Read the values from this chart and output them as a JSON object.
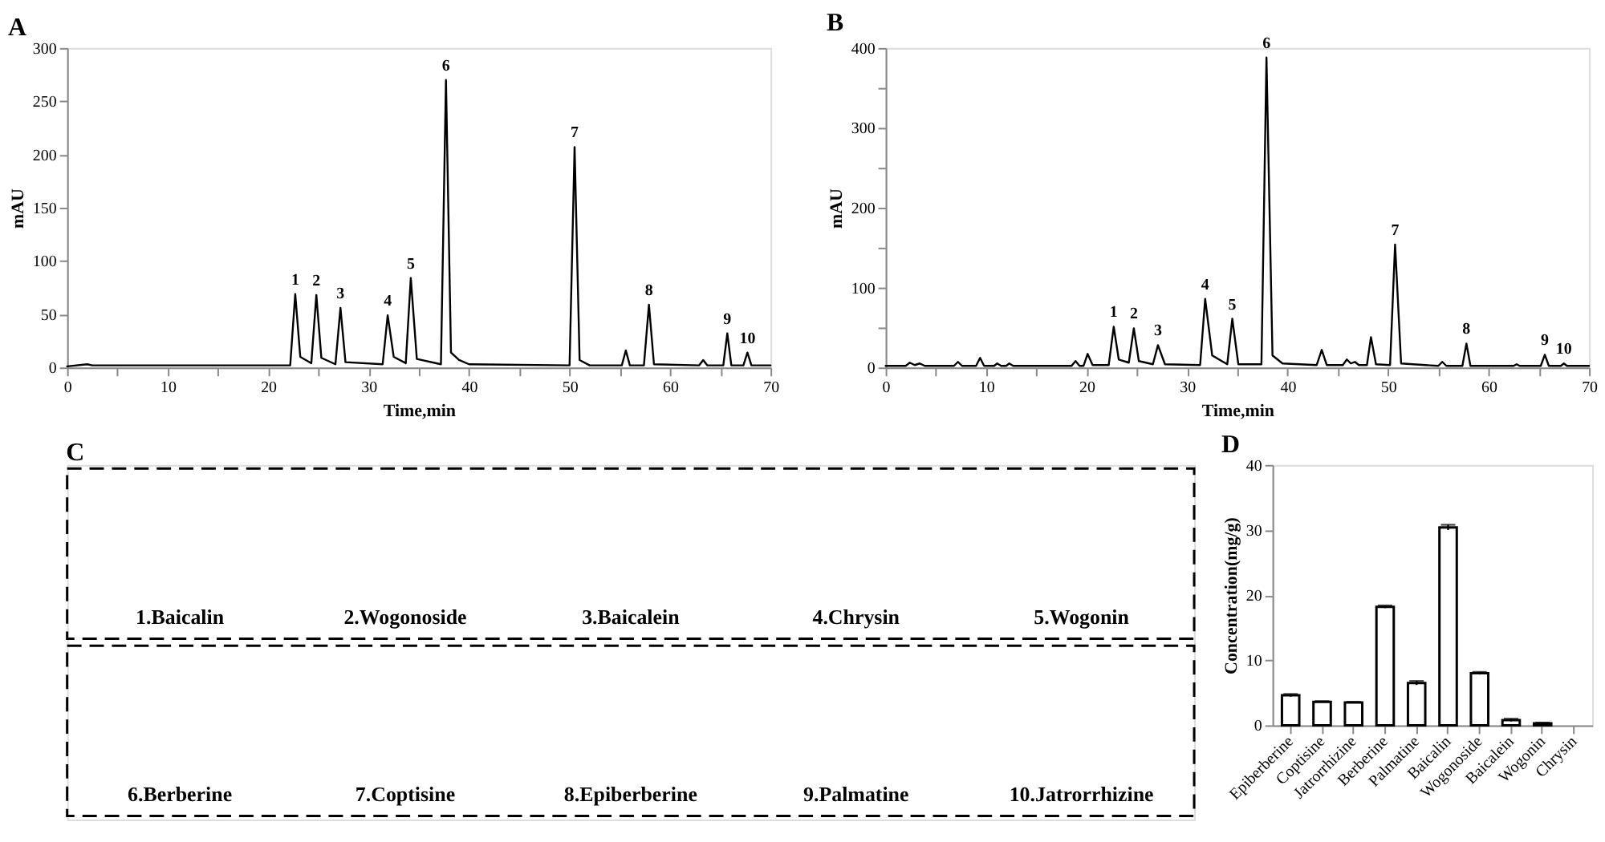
{
  "chart_data": [
    {
      "type": "line",
      "title": "A",
      "xlabel": "Time,min",
      "ylabel": "mAU",
      "color": "#000000",
      "x": [
        0,
        2.0,
        2.5,
        20,
        22.2,
        22.7,
        23.2,
        24.3,
        24.8,
        25.3,
        26.7,
        27.2,
        27.7,
        31.4,
        31.9,
        32.5,
        33.7,
        34.2,
        34.8,
        37.2,
        37.7,
        38.2,
        39.0,
        40.0,
        50.0,
        50.5,
        51.0,
        52.0,
        55.2,
        55.6,
        56.0,
        57.4,
        57.9,
        58.4,
        62.9,
        63.3,
        63.7,
        65.3,
        65.7,
        66.1,
        67.3,
        67.7,
        68.1,
        70
      ],
      "values": [
        1,
        3,
        2,
        2,
        2,
        69,
        10,
        4,
        68,
        9,
        3,
        56,
        5,
        3,
        49,
        10,
        4,
        84,
        8,
        3,
        270,
        14,
        7,
        3,
        2,
        207,
        7,
        2,
        2,
        16,
        2,
        2,
        59,
        3,
        2,
        7,
        2,
        2,
        32,
        2,
        2,
        14,
        2,
        2
      ],
      "xlim": [
        0,
        70
      ],
      "xticks": [
        0,
        {
          "value": 5,
          "label": null
        },
        10,
        {
          "value": 15,
          "label": null
        },
        20,
        {
          "value": 25,
          "label": null
        },
        30,
        {
          "value": 35,
          "label": null
        },
        40,
        {
          "value": 45,
          "label": null
        },
        50,
        {
          "value": 55,
          "label": null
        },
        60,
        {
          "value": 65,
          "label": null
        },
        70
      ],
      "ylim": [
        0,
        300
      ],
      "yticks": [
        0,
        50,
        100,
        150,
        200,
        250,
        300
      ],
      "annotations": [
        {
          "text": "1",
          "x": 22.7,
          "y": 69
        },
        {
          "text": "2",
          "x": 24.8,
          "y": 68
        },
        {
          "text": "3",
          "x": 27.2,
          "y": 56
        },
        {
          "text": "4",
          "x": 31.9,
          "y": 49
        },
        {
          "text": "5",
          "x": 34.2,
          "y": 84
        },
        {
          "text": "6",
          "x": 37.7,
          "y": 270
        },
        {
          "text": "7",
          "x": 50.5,
          "y": 207
        },
        {
          "text": "8",
          "x": 57.9,
          "y": 59
        },
        {
          "text": "9",
          "x": 65.7,
          "y": 32
        },
        {
          "text": "10",
          "x": 67.7,
          "y": 14
        }
      ]
    },
    {
      "type": "line",
      "title": "B",
      "xlabel": "Time,min",
      "ylabel": "mAU",
      "color": "#000000",
      "x": [
        0,
        2.0,
        2.4,
        2.9,
        3.4,
        3.9,
        6.8,
        7.2,
        7.6,
        9.0,
        9.4,
        9.8,
        10.8,
        11.1,
        11.5,
        12.0,
        12.3,
        12.7,
        18.5,
        18.9,
        19.3,
        19.7,
        20.1,
        20.6,
        22.2,
        22.7,
        23.2,
        24.2,
        24.7,
        25.2,
        26.6,
        27.1,
        27.8,
        31.3,
        31.8,
        32.5,
        34.0,
        34.5,
        35.1,
        37.4,
        37.9,
        38.5,
        39.5,
        42.9,
        43.4,
        43.9,
        45.5,
        45.9,
        46.3,
        46.7,
        47.1,
        47.9,
        48.3,
        48.8,
        50.2,
        50.7,
        51.3,
        55.0,
        55.4,
        55.8,
        57.4,
        57.8,
        58.2,
        62.5,
        62.8,
        63.1,
        65.2,
        65.6,
        66.0,
        67.2,
        67.5,
        67.8,
        70
      ],
      "values": [
        2,
        2,
        6,
        3,
        5,
        2,
        2,
        7,
        2,
        2,
        12,
        2,
        2,
        5,
        2,
        2,
        5,
        2,
        2,
        8,
        2,
        2,
        17,
        3,
        3,
        51,
        10,
        6,
        49,
        8,
        4,
        28,
        4,
        3,
        86,
        15,
        4,
        61,
        4,
        4,
        388,
        15,
        5,
        3,
        22,
        3,
        3,
        10,
        5,
        7,
        3,
        3,
        38,
        4,
        3,
        154,
        5,
        2,
        7,
        2,
        2,
        30,
        2,
        2,
        4,
        2,
        2,
        16,
        2,
        2,
        5,
        2,
        2
      ],
      "xlim": [
        0,
        70
      ],
      "xticks": [
        0,
        {
          "value": 5,
          "label": null
        },
        10,
        {
          "value": 15,
          "label": null
        },
        20,
        {
          "value": 25,
          "label": null
        },
        30,
        {
          "value": 35,
          "label": null
        },
        40,
        {
          "value": 45,
          "label": null
        },
        50,
        {
          "value": 55,
          "label": null
        },
        60,
        {
          "value": 65,
          "label": null
        },
        70
      ],
      "ylim": [
        0,
        400
      ],
      "yticks": [
        0,
        {
          "value": 50,
          "label": null
        },
        100,
        {
          "value": 150,
          "label": null
        },
        200,
        {
          "value": 250,
          "label": null
        },
        300,
        {
          "value": 350,
          "label": null
        },
        400
      ],
      "annotations": [
        {
          "text": "1",
          "x": 22.7,
          "y": 51
        },
        {
          "text": "2",
          "x": 24.7,
          "y": 49
        },
        {
          "text": "3",
          "x": 27.1,
          "y": 28
        },
        {
          "text": "4",
          "x": 31.8,
          "y": 86
        },
        {
          "text": "5",
          "x": 34.5,
          "y": 61
        },
        {
          "text": "6",
          "x": 37.9,
          "y": 388
        },
        {
          "text": "7",
          "x": 50.7,
          "y": 154
        },
        {
          "text": "8",
          "x": 57.8,
          "y": 30
        },
        {
          "text": "9",
          "x": 65.6,
          "y": 16
        },
        {
          "text": "10",
          "x": 67.5,
          "y": 5
        }
      ]
    },
    {
      "type": "other",
      "title": "C",
      "annotations": [
        "1.Baicalin",
        "2.Wogonoside",
        "3.Baicalein",
        "4.Chrysin",
        "5.Wogonin",
        "6.Berberine",
        "7.Coptisine",
        "8.Epiberberine",
        "9.Palmatine",
        "10.Jatrorrhizine"
      ]
    },
    {
      "type": "bar",
      "title": "D",
      "ylabel": "Concentration(mg/g)",
      "color": "#ffffff",
      "categories": [
        "Epiberberine",
        "Coptisine",
        "Jatrorrhizine",
        "Berberine",
        "Palmatine",
        "Baicalin",
        "Wogonoside",
        "Baicalein",
        "Wogonin",
        "Chrysin"
      ],
      "values": [
        4.6,
        3.6,
        3.5,
        18.2,
        6.5,
        30.4,
        8.0,
        0.8,
        0.3,
        null
      ],
      "errors": [
        0.2,
        0.1,
        0.1,
        0.2,
        0.3,
        0.4,
        0.2,
        0.2,
        0.1,
        null
      ],
      "ylim": [
        0,
        40
      ],
      "yticks": [
        0,
        10,
        20,
        30,
        40
      ]
    }
  ]
}
